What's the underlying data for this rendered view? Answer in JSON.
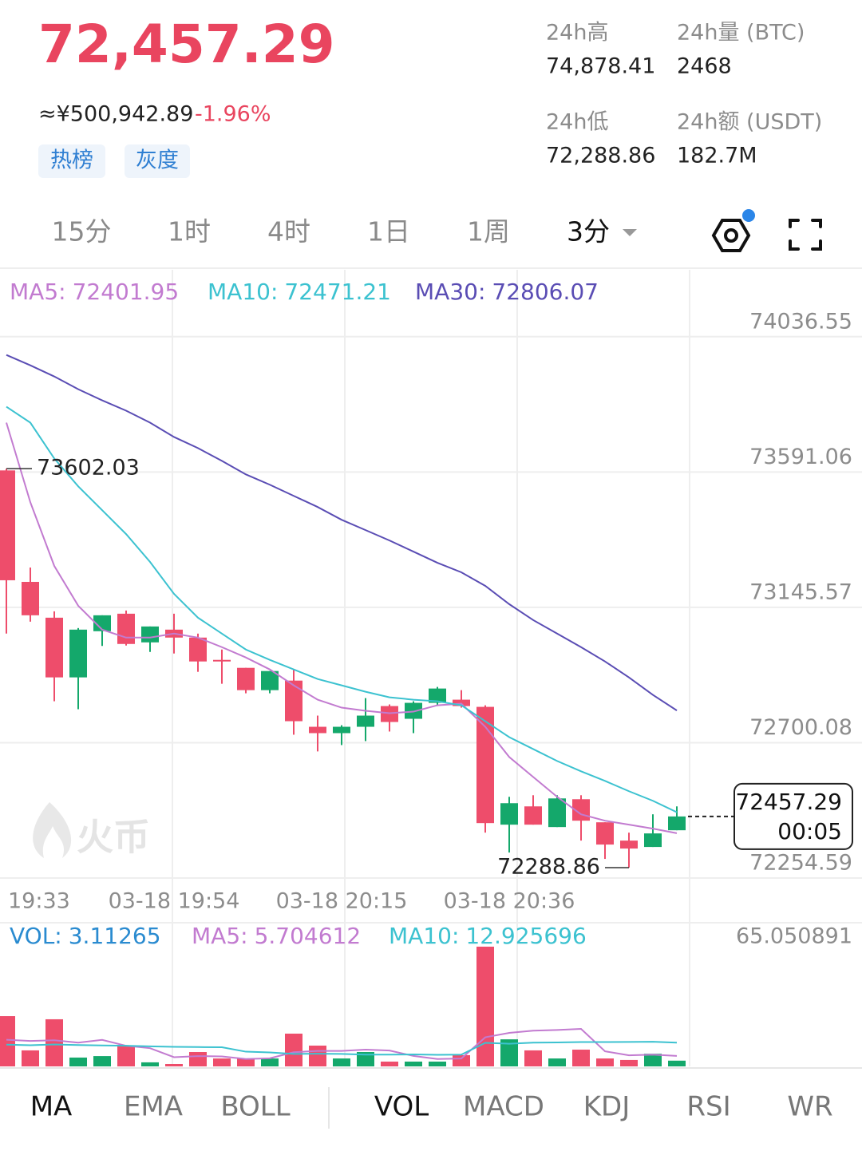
{
  "header": {
    "price": "72,457.29",
    "cny": "≈¥500,942.89",
    "change": "-1.96%",
    "tags": [
      "热榜",
      "灰度"
    ]
  },
  "stats": [
    {
      "label": "24h高",
      "value": "74,878.41"
    },
    {
      "label": "24h量 (BTC)",
      "value": "2468"
    },
    {
      "label": "24h低",
      "value": "72,288.86"
    },
    {
      "label": "24h额 (USDT)",
      "value": "182.7M"
    }
  ],
  "timeframes": [
    "15分",
    "1时",
    "4时",
    "1日",
    "1周",
    "3分"
  ],
  "indicators": {
    "main": [
      "MA",
      "EMA",
      "BOLL"
    ],
    "sub": [
      "VOL",
      "MACD",
      "KDJ",
      "RSI",
      "WR"
    ]
  },
  "chart_data": [
    {
      "type": "candlestick",
      "categories": [
        "19:33",
        null,
        null,
        null,
        null,
        null,
        null,
        "03-18 19:54",
        null,
        null,
        null,
        null,
        null,
        null,
        "03-18 20:15",
        null,
        null,
        null,
        null,
        null,
        null,
        "03-18 20:36",
        null,
        null,
        null,
        null,
        null,
        null,
        null
      ],
      "open": [
        73596.3,
        73229.4,
        73111.5,
        72915.0,
        73067.0,
        73124.6,
        73030.3,
        73072.2,
        73046.0,
        72972.6,
        72946.4,
        72873.0,
        72904.4,
        72752.4,
        72731.5,
        72752.4,
        72820.6,
        72778.7,
        72831.2,
        72841.6,
        72818.0,
        72430.2,
        72490.4,
        72422.3,
        72514.0,
        72438.0,
        72377.8,
        72356.8,
        72411.8
      ],
      "high": [
        73602.03,
        73276.6,
        73132.4,
        73077.4,
        73119.4,
        73135.1,
        73082.6,
        73124.6,
        73059.1,
        73006.7,
        72946.4,
        72935.9,
        72941.2,
        72789.2,
        72757.6,
        72846.8,
        72826.0,
        72836.4,
        72883.6,
        72873.0,
        72823.2,
        72521.9,
        72527.1,
        72527.1,
        72527.1,
        72438.0,
        72403.9,
        72464.3,
        72490.4
      ],
      "low": [
        73059.1,
        73098.4,
        72836.4,
        72810.2,
        73018.5,
        73019.8,
        72998.8,
        72993.6,
        72933.3,
        72894.0,
        72862.6,
        72862.6,
        72726.3,
        72671.3,
        72692.2,
        72705.3,
        72736.8,
        72731.5,
        72820.6,
        72815.4,
        72404.0,
        72338.5,
        72430.2,
        72422.3,
        72377.8,
        72317.5,
        72288.86,
        72356.8,
        72411.8
      ],
      "close": [
        73234.7,
        73119.4,
        72915.0,
        73072.2,
        73119.4,
        73025.0,
        73082.6,
        73046.0,
        72967.4,
        72967.4,
        72873.0,
        72935.9,
        72770.8,
        72731.5,
        72752.4,
        72789.2,
        72768.2,
        72831.2,
        72878.3,
        72820.6,
        72435.4,
        72500.9,
        72430.2,
        72516.6,
        72443.3,
        72364.7,
        72351.6,
        72401.4,
        72457.29
      ],
      "up_color": "#14a86b",
      "down_color": "#ee4d6b",
      "series": [
        {
          "name": "MA5:",
          "color": "#c27bd0",
          "values": [
            73753.5,
            73491.5,
            73281.9,
            73150.8,
            73072.2,
            73046.0,
            73046.0,
            73059.1,
            73046.0,
            73014.6,
            72980.5,
            72941.2,
            72888.8,
            72841.6,
            72815.4,
            72804.9,
            72797.1,
            72802.3,
            72823.2,
            72828.5,
            72752.5,
            72653.0,
            72587.4,
            72521.9,
            72464.3,
            72443.3,
            72430.2,
            72417.1,
            72401.95
          ]
        },
        {
          "name": "MA10:",
          "color": "#3cc2d0",
          "values": [
            73805.9,
            73753.5,
            73635.6,
            73543.9,
            73465.3,
            73386.7,
            73295.0,
            73190.1,
            73111.5,
            73059.1,
            73006.7,
            72972.6,
            72941.2,
            72909.7,
            72888.8,
            72867.8,
            72849.5,
            72841.6,
            72836.4,
            72823.2,
            72770.8,
            72718.4,
            72679.1,
            72639.8,
            72605.8,
            72574.3,
            72540.3,
            72508.8,
            72471.21
          ]
        },
        {
          "name": "MA30:",
          "color": "#5a4db4",
          "values": [
            73976.3,
            73942.2,
            73905.5,
            73863.6,
            73826.9,
            73792.9,
            73753.5,
            73706.4,
            73669.7,
            73627.8,
            73583.2,
            73549.2,
            73512.5,
            73475.8,
            73433.8,
            73399.8,
            73365.7,
            73329.0,
            73292.3,
            73260.9,
            73216.3,
            73156.1,
            73103.7,
            73059.1,
            73014.6,
            72967.4,
            72915.0,
            72857.3,
            72806.07
          ]
        }
      ],
      "ylim": [
        72254.59,
        74256.67
      ],
      "yticks": [
        74036.55,
        73591.06,
        73145.57,
        72700.08,
        72254.59
      ],
      "grid": true,
      "countdown": "00:05",
      "watermark": "火币"
    },
    {
      "type": "bar",
      "name": "VOL:",
      "color": "#2a8bd0",
      "values": [
        27.3,
        8.7,
        25.6,
        4.8,
        5.6,
        11.3,
        2.2,
        1.3,
        7.8,
        4.3,
        4.3,
        4.3,
        17.8,
        11.3,
        4.3,
        7.8,
        2.6,
        2.6,
        2.6,
        6.1,
        65.050891,
        14.7,
        8.7,
        4.3,
        9.1,
        4.3,
        3.5,
        6.9,
        3.11265
      ],
      "series": [
        {
          "name": "MA5:",
          "color": "#c27bd0",
          "values": [
            14.5,
            13.8,
            14.2,
            12.9,
            14.4,
            11.2,
            9.9,
            5.0,
            5.6,
            5.4,
            4.0,
            4.4,
            7.7,
            8.4,
            8.4,
            9.1,
            8.6,
            5.7,
            4.0,
            4.3,
            15.8,
            18.2,
            19.4,
            19.8,
            20.4,
            8.2,
            6.0,
            6.4,
            5.704612
          ]
        },
        {
          "name": "MA10:",
          "color": "#3cc2d0",
          "values": [
            11.8,
            11.5,
            11.9,
            11.6,
            11.4,
            11.2,
            10.9,
            10.6,
            10.5,
            10.4,
            8.0,
            7.6,
            6.8,
            6.9,
            6.8,
            6.4,
            6.4,
            6.5,
            6.3,
            6.4,
            12.8,
            12.3,
            12.9,
            13.0,
            13.2,
            13.2,
            13.3,
            13.4,
            12.925696
          ]
        }
      ],
      "ylim": [
        0,
        65.050891
      ],
      "yticks": [
        65.050891
      ]
    }
  ]
}
